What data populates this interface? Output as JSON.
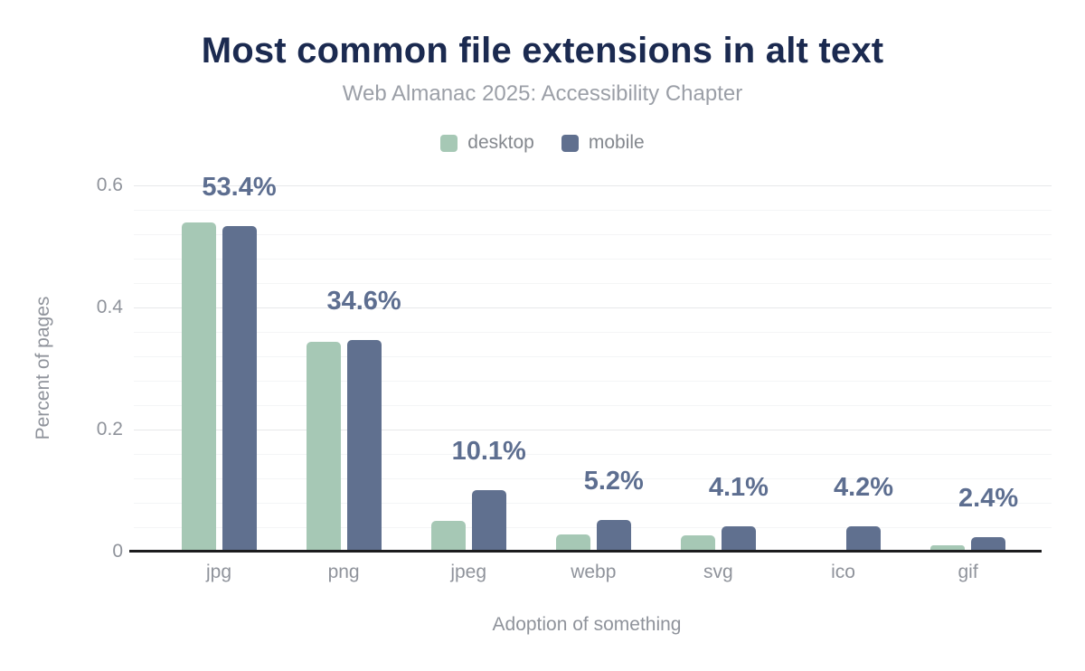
{
  "chart_data": {
    "type": "bar",
    "title": "Most common file extensions in alt text",
    "subtitle": "Web Almanac 2025: Accessibility Chapter",
    "xlabel": "Adoption of something",
    "ylabel": "Percent of pages",
    "categories": [
      "jpg",
      "png",
      "jpeg",
      "webp",
      "svg",
      "ico",
      "gif"
    ],
    "series": [
      {
        "name": "desktop",
        "color": "#a6c8b5",
        "values": [
          0.539,
          0.344,
          0.05,
          0.028,
          0.026,
          0.0,
          0.01
        ]
      },
      {
        "name": "mobile",
        "color": "#60708f",
        "values": [
          0.534,
          0.346,
          0.101,
          0.052,
          0.041,
          0.042,
          0.024
        ]
      }
    ],
    "data_labels": [
      "53.4%",
      "34.6%",
      "10.1%",
      "5.2%",
      "4.1%",
      "4.2%",
      "2.4%"
    ],
    "data_labels_series": "mobile",
    "yticks": [
      {
        "value": 0.0,
        "label": "0"
      },
      {
        "value": 0.2,
        "label": "0.2"
      },
      {
        "value": 0.4,
        "label": "0.4"
      },
      {
        "value": 0.6,
        "label": "0.6"
      }
    ],
    "ylim": [
      0,
      0.6
    ],
    "minor_grid_step": 0.04,
    "grid": true,
    "legend_position": "top"
  },
  "colors": {
    "title": "#1b2a50",
    "subtitle": "#9b9fa7",
    "axis_text": "#8f939b",
    "data_label": "#5d6e90",
    "desktop": "#a6c8b5",
    "mobile": "#60708f",
    "background": "#ffffff",
    "axis_line": "#1c1c1e"
  }
}
